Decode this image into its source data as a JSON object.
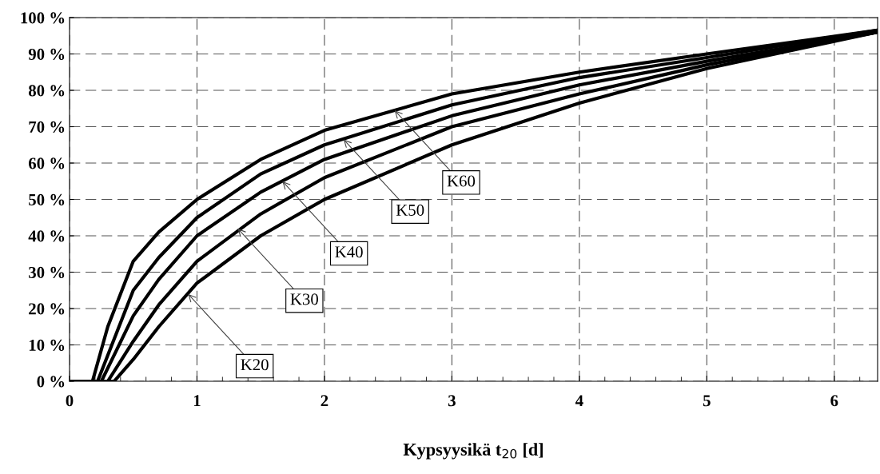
{
  "chart_data": {
    "type": "line",
    "xlabel": "Kypsyysikä t$_{20}$ [d]",
    "xlim": [
      0,
      6.34
    ],
    "ylim": [
      0,
      100
    ],
    "xticks": [
      0,
      1,
      2,
      3,
      4,
      5,
      6
    ],
    "yticks": [
      {
        "value": 0,
        "label": "0 %"
      },
      {
        "value": 10,
        "label": "10 %"
      },
      {
        "value": 20,
        "label": "20 %"
      },
      {
        "value": 30,
        "label": "30 %"
      },
      {
        "value": 40,
        "label": "40 %"
      },
      {
        "value": 50,
        "label": "50 %"
      },
      {
        "value": 60,
        "label": "60 %"
      },
      {
        "value": 70,
        "label": "70 %"
      },
      {
        "value": 80,
        "label": "80 %"
      },
      {
        "value": 90,
        "label": "90 %"
      },
      {
        "value": 100,
        "label": "100 %"
      }
    ],
    "grid": true,
    "line_style": "solid",
    "marker": "none",
    "series": [
      {
        "color": "#000000",
        "x": [
          0,
          0.18,
          0.3,
          0.5,
          0.7,
          1,
          1.5,
          2,
          3,
          4,
          5,
          6.34
        ],
        "values": [
          0,
          0,
          15,
          33,
          41,
          50,
          61,
          69,
          79,
          85,
          90,
          96.5
        ]
      },
      {
        "color": "#000000",
        "x": [
          0,
          0.22,
          0.5,
          0.7,
          1,
          1.5,
          2,
          3,
          4,
          5,
          6.34
        ],
        "values": [
          0,
          0,
          25,
          34,
          45,
          57,
          65,
          76,
          83.5,
          89,
          96.5
        ]
      },
      {
        "color": "#000000",
        "x": [
          0,
          0.25,
          0.5,
          0.7,
          1,
          1.5,
          2,
          3,
          4,
          5,
          6.34
        ],
        "values": [
          0,
          0,
          18,
          28,
          40,
          52,
          61,
          73,
          81.5,
          88,
          96
        ]
      },
      {
        "color": "#000000",
        "x": [
          0,
          0.3,
          0.5,
          0.7,
          1,
          1.5,
          2,
          3,
          4,
          5,
          6.34
        ],
        "values": [
          0,
          0,
          11,
          21,
          33,
          46,
          56,
          70,
          79,
          87,
          96
        ]
      },
      {
        "color": "#000000",
        "x": [
          0,
          0.35,
          0.4,
          0.5,
          0.7,
          1,
          1.5,
          2,
          3,
          4,
          5,
          6.34
        ],
        "values": [
          0,
          0,
          2,
          6,
          15,
          27,
          40,
          50,
          65,
          76.5,
          86,
          96
        ]
      }
    ],
    "annotations": [
      {
        "text": "K20",
        "x": 0.93,
        "y": 24
      },
      {
        "text": "K30",
        "x": 1.32,
        "y": 42
      },
      {
        "text": "K40",
        "x": 1.67,
        "y": 55
      },
      {
        "text": "K50",
        "x": 2.15,
        "y": 66.5
      },
      {
        "text": "K60",
        "x": 2.55,
        "y": 74.5
      }
    ]
  }
}
